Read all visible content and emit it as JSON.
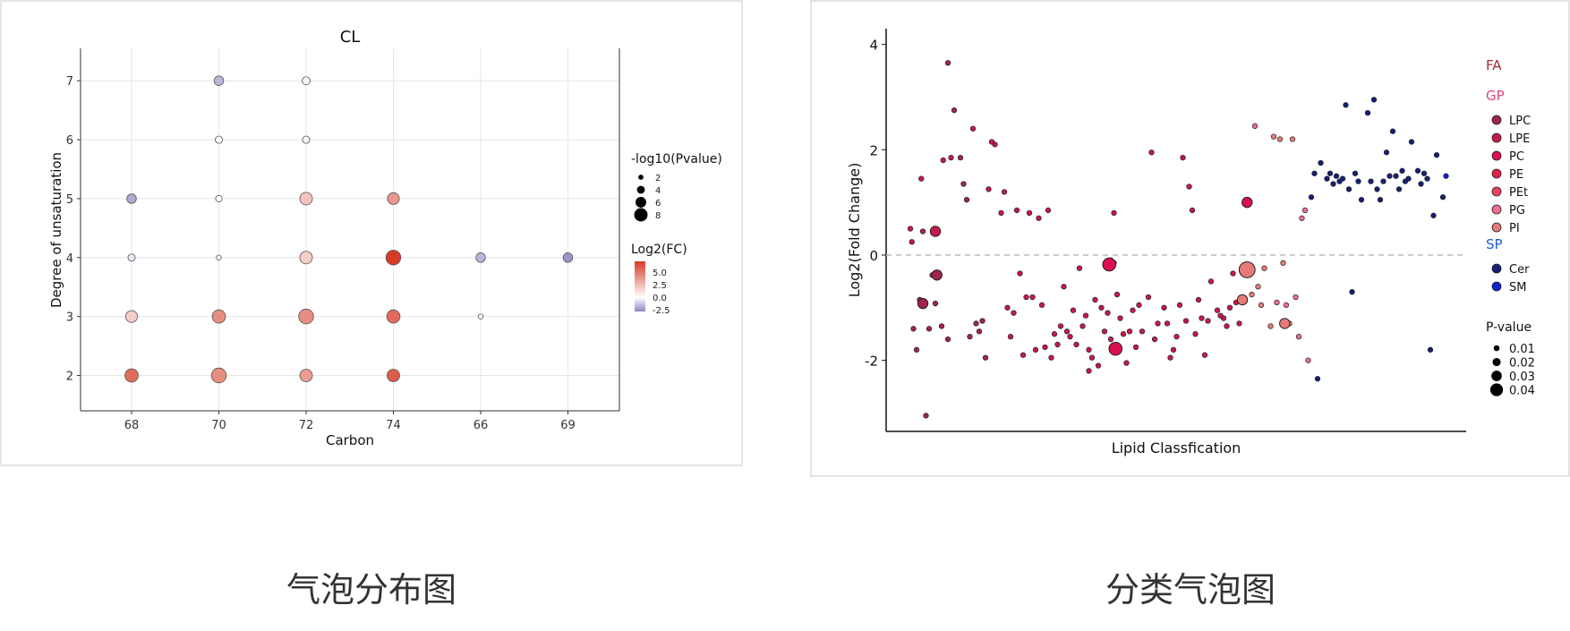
{
  "captions": {
    "left": "气泡分布图",
    "right": "分类气泡图"
  },
  "chart_data": [
    {
      "type": "scatter",
      "title": "CL",
      "xlabel": "Carbon",
      "ylabel": "Degree of unsaturation",
      "categories": [
        "68",
        "70",
        "72",
        "74",
        "66",
        "69"
      ],
      "yticks": [
        2,
        3,
        4,
        5,
        6,
        7
      ],
      "ylim": [
        1.4,
        7.55
      ],
      "grid": true,
      "points": [
        {
          "x": "70",
          "y": 7,
          "fc": -1.5,
          "p": 4.5
        },
        {
          "x": "72",
          "y": 7,
          "fc": 0.3,
          "p": 3.5
        },
        {
          "x": "70",
          "y": 6,
          "fc": 0.0,
          "p": 3.0
        },
        {
          "x": "72",
          "y": 6,
          "fc": 0.2,
          "p": 3.0
        },
        {
          "x": "68",
          "y": 5,
          "fc": -1.8,
          "p": 4.5
        },
        {
          "x": "70",
          "y": 5,
          "fc": 0.0,
          "p": 2.5
        },
        {
          "x": "72",
          "y": 5,
          "fc": 1.8,
          "p": 6.5
        },
        {
          "x": "74",
          "y": 5,
          "fc": 3.2,
          "p": 6.0
        },
        {
          "x": "68",
          "y": 4,
          "fc": -0.5,
          "p": 3.0
        },
        {
          "x": "70",
          "y": 4,
          "fc": 0.0,
          "p": 1.5
        },
        {
          "x": "72",
          "y": 4,
          "fc": 1.5,
          "p": 6.5
        },
        {
          "x": "74",
          "y": 4,
          "fc": 6.0,
          "p": 8.0
        },
        {
          "x": "66",
          "y": 4,
          "fc": -1.5,
          "p": 4.5
        },
        {
          "x": "69",
          "y": 4,
          "fc": -2.2,
          "p": 4.5
        },
        {
          "x": "68",
          "y": 3,
          "fc": 1.5,
          "p": 6.0
        },
        {
          "x": "70",
          "y": 3,
          "fc": 3.5,
          "p": 7.0
        },
        {
          "x": "72",
          "y": 3,
          "fc": 3.5,
          "p": 8.0
        },
        {
          "x": "74",
          "y": 3,
          "fc": 4.5,
          "p": 7.0
        },
        {
          "x": "66",
          "y": 3,
          "fc": 0.0,
          "p": 1.5
        },
        {
          "x": "68",
          "y": 2,
          "fc": 4.5,
          "p": 7.0
        },
        {
          "x": "70",
          "y": 2,
          "fc": 3.5,
          "p": 8.0
        },
        {
          "x": "72",
          "y": 2,
          "fc": 3.0,
          "p": 6.5
        },
        {
          "x": "74",
          "y": 2,
          "fc": 5.0,
          "p": 6.5
        }
      ],
      "legend_size": {
        "title": "-log10(Pvalue)",
        "values": [
          2,
          4,
          6,
          8
        ],
        "labels": [
          "2",
          "4",
          "6",
          "8"
        ]
      },
      "legend_color": {
        "title": "Log2(FC)",
        "ticks": [
          "5.0",
          "2.5",
          "0.0",
          "-2.5"
        ],
        "low": "#8e86c2",
        "mid": "#ffffff",
        "high": "#d73b27"
      },
      "legend_placement": "right"
    },
    {
      "type": "scatter",
      "xlabel": "Lipid Classfication",
      "ylabel": "Log2(Fold Change)",
      "yticks": [
        "4",
        "2",
        "0",
        "-2"
      ],
      "ylim": [
        -3.35,
        4.3
      ],
      "reference_line_y": 0,
      "legend": {
        "groups": [
          {
            "name": "FA",
            "color": "#a52a2a",
            "items": []
          },
          {
            "name": "GP",
            "color": "#e0457b",
            "items": [
              {
                "name": "LPC",
                "color": "#a3234f"
              },
              {
                "name": "LPE",
                "color": "#c8184a"
              },
              {
                "name": "PC",
                "color": "#dc0f50"
              },
              {
                "name": "PE",
                "color": "#e61e4c"
              },
              {
                "name": "PEt",
                "color": "#ef3f63"
              },
              {
                "name": "PG",
                "color": "#ee6d90"
              },
              {
                "name": "PI",
                "color": "#e57a78"
              }
            ]
          },
          {
            "name": "SP",
            "color": "#1e5ad1",
            "items": [
              {
                "name": "Cer",
                "color": "#141f78"
              },
              {
                "name": "SM",
                "color": "#1020d0"
              }
            ]
          }
        ],
        "size": {
          "title": "P-value",
          "labels": [
            "0.01",
            "0.02",
            "0.03",
            "0.04"
          ],
          "values": [
            0.01,
            0.02,
            0.03,
            0.04
          ]
        }
      },
      "series": [
        {
          "name": "LPC",
          "color": "#a3234f",
          "points": [
            [
              0.6,
              0.45
            ],
            [
              0.9,
              -0.38
            ],
            [
              1.0,
              -0.92
            ],
            [
              1.4,
              3.65
            ],
            [
              1.6,
              2.75
            ],
            [
              1.8,
              1.85
            ],
            [
              1.9,
              1.35
            ],
            [
              2.0,
              1.05
            ],
            [
              2.1,
              -1.55
            ],
            [
              2.3,
              -1.3
            ],
            [
              2.4,
              -1.45
            ],
            [
              2.6,
              -1.95
            ],
            [
              0.5,
              -0.85
            ],
            [
              0.3,
              -1.4
            ],
            [
              0.8,
              -1.4
            ],
            [
              1.2,
              -1.35
            ],
            [
              1.4,
              -1.6
            ],
            [
              2.5,
              -1.25
            ],
            [
              0.4,
              -1.8
            ],
            [
              0.7,
              -3.05
            ]
          ]
        },
        {
          "name": "LPE",
          "color": "#c8184a",
          "points": [
            [
              0.2,
              0.5
            ],
            [
              0.25,
              0.25
            ],
            [
              0.55,
              1.45
            ],
            [
              0.65,
              -0.95
            ],
            [
              1.25,
              1.8
            ],
            [
              1.5,
              1.85
            ],
            [
              2.2,
              2.4
            ],
            [
              2.7,
              1.25
            ],
            [
              2.9,
              2.1
            ],
            [
              3.1,
              0.8
            ],
            [
              2.8,
              2.15
            ],
            [
              3.2,
              1.2
            ],
            [
              3.3,
              -1.0
            ],
            [
              3.5,
              -1.1
            ],
            [
              3.7,
              -0.35
            ],
            [
              3.9,
              -0.8
            ],
            [
              4.1,
              -0.8
            ],
            [
              4.2,
              -1.8
            ],
            [
              4.4,
              -0.95
            ],
            [
              4.6,
              0.85
            ],
            [
              4.8,
              -1.5
            ],
            [
              5.0,
              -1.35
            ],
            [
              5.2,
              -1.45
            ],
            [
              5.4,
              -1.05
            ],
            [
              5.6,
              -0.25
            ],
            [
              5.8,
              -1.15
            ],
            [
              6.0,
              -1.95
            ],
            [
              6.1,
              -0.85
            ],
            [
              6.3,
              -1.0
            ],
            [
              6.5,
              -1.1
            ],
            [
              6.6,
              -1.6
            ],
            [
              6.8,
              -0.75
            ],
            [
              7.0,
              -1.5
            ],
            [
              7.2,
              -1.45
            ],
            [
              7.4,
              -1.75
            ],
            [
              7.5,
              -0.95
            ],
            [
              7.8,
              -0.8
            ],
            [
              7.9,
              1.95
            ],
            [
              8.1,
              -1.3
            ],
            [
              8.3,
              -1.0
            ],
            [
              8.4,
              -1.3
            ],
            [
              8.6,
              -1.8
            ],
            [
              8.8,
              -0.95
            ],
            [
              9.0,
              -1.25
            ],
            [
              9.1,
              1.3
            ],
            [
              9.2,
              0.85
            ],
            [
              9.3,
              -1.5
            ],
            [
              9.5,
              -1.2
            ],
            [
              9.7,
              -1.25
            ],
            [
              9.8,
              -0.5
            ],
            [
              10.0,
              -1.05
            ],
            [
              10.2,
              -1.2
            ],
            [
              10.4,
              -1.0
            ],
            [
              10.5,
              -0.35
            ],
            [
              10.7,
              -1.3
            ],
            [
              3.6,
              0.85
            ],
            [
              4.0,
              0.8
            ],
            [
              4.3,
              0.7
            ],
            [
              5.1,
              -0.6
            ],
            [
              5.3,
              -1.55
            ],
            [
              5.5,
              -1.7
            ],
            [
              5.9,
              -1.8
            ],
            [
              6.4,
              -1.45
            ],
            [
              6.9,
              -1.2
            ],
            [
              7.1,
              -2.05
            ],
            [
              7.6,
              -1.45
            ],
            [
              8.0,
              -1.6
            ],
            [
              8.5,
              -1.95
            ],
            [
              8.9,
              1.85
            ],
            [
              9.4,
              -0.85
            ],
            [
              9.6,
              -1.9
            ],
            [
              4.5,
              -1.75
            ],
            [
              5.7,
              -1.35
            ],
            [
              6.7,
              0.8
            ],
            [
              4.9,
              -1.7
            ],
            [
              6.2,
              -2.1
            ],
            [
              8.7,
              -1.55
            ],
            [
              10.1,
              -1.15
            ],
            [
              10.3,
              -1.35
            ],
            [
              10.6,
              -0.9
            ],
            [
              3.4,
              -1.55
            ],
            [
              3.8,
              -1.9
            ],
            [
              4.7,
              -1.95
            ],
            [
              5.9,
              -2.2
            ],
            [
              7.3,
              -1.05
            ]
          ]
        },
        {
          "name": "PC",
          "color": "#dc0f50",
          "points": [
            [
              6.5,
              -0.2
            ],
            [
              6.6,
              -0.1
            ],
            [
              6.7,
              -0.15
            ],
            [
              6.8,
              -1.75
            ],
            [
              10.9,
              -0.3
            ],
            [
              11.0,
              1.0
            ]
          ]
        },
        {
          "name": "PI",
          "color": "#e57a78",
          "points": [
            [
              11.1,
              -0.75
            ],
            [
              11.3,
              -0.6
            ],
            [
              11.4,
              -0.95
            ],
            [
              11.5,
              -0.25
            ],
            [
              11.7,
              -1.35
            ],
            [
              11.8,
              2.25
            ],
            [
              12.0,
              2.2
            ],
            [
              12.1,
              -0.15
            ],
            [
              12.3,
              -1.3
            ],
            [
              12.4,
              2.2
            ]
          ]
        },
        {
          "name": "PG",
          "color": "#ee6d90",
          "points": [
            [
              11.2,
              2.45
            ],
            [
              11.9,
              -0.9
            ],
            [
              12.2,
              -0.95
            ],
            [
              12.5,
              -0.8
            ],
            [
              12.6,
              -1.55
            ],
            [
              12.7,
              0.7
            ],
            [
              12.8,
              0.85
            ],
            [
              12.9,
              -2.0
            ]
          ]
        },
        {
          "name": "Cer",
          "color": "#141f78",
          "points": [
            [
              13.0,
              1.1
            ],
            [
              13.1,
              1.55
            ],
            [
              13.3,
              1.75
            ],
            [
              13.5,
              1.45
            ],
            [
              13.6,
              1.55
            ],
            [
              13.7,
              1.35
            ],
            [
              13.9,
              1.4
            ],
            [
              14.0,
              1.45
            ],
            [
              14.1,
              2.85
            ],
            [
              14.2,
              1.25
            ],
            [
              14.4,
              1.55
            ],
            [
              14.5,
              1.4
            ],
            [
              14.6,
              1.05
            ],
            [
              14.8,
              2.7
            ],
            [
              14.9,
              1.4
            ],
            [
              15.0,
              2.95
            ],
            [
              15.1,
              1.25
            ],
            [
              15.3,
              1.4
            ],
            [
              15.4,
              1.95
            ],
            [
              15.5,
              1.5
            ],
            [
              15.6,
              2.35
            ],
            [
              15.8,
              1.25
            ],
            [
              15.9,
              1.6
            ],
            [
              16.0,
              1.4
            ],
            [
              16.2,
              2.15
            ],
            [
              16.4,
              1.6
            ],
            [
              16.5,
              1.35
            ],
            [
              16.6,
              1.55
            ],
            [
              16.8,
              -1.8
            ],
            [
              16.9,
              0.75
            ],
            [
              17.0,
              1.9
            ],
            [
              17.2,
              1.1
            ],
            [
              13.2,
              -2.35
            ],
            [
              14.3,
              -0.7
            ],
            [
              13.8,
              1.5
            ],
            [
              15.2,
              1.05
            ],
            [
              15.7,
              1.5
            ],
            [
              16.1,
              1.45
            ],
            [
              16.7,
              1.45
            ]
          ]
        },
        {
          "name": "SM",
          "color": "#1020d0",
          "points": [
            [
              17.3,
              1.5
            ]
          ]
        }
      ],
      "big_points": [
        {
          "x": 6.55,
          "y": -0.18,
          "color": "#dc0f50",
          "p": 0.03
        },
        {
          "x": 6.75,
          "y": -1.78,
          "color": "#dc0f50",
          "p": 0.03
        },
        {
          "x": 10.95,
          "y": -0.28,
          "color": "#e57a78",
          "p": 0.04
        },
        {
          "x": 0.6,
          "y": -0.92,
          "color": "#a3234f",
          "p": 0.02
        },
        {
          "x": 1.0,
          "y": 0.45,
          "color": "#c8184a",
          "p": 0.02
        },
        {
          "x": 1.05,
          "y": -0.38,
          "color": "#a3234f",
          "p": 0.02
        },
        {
          "x": 10.95,
          "y": 1.0,
          "color": "#dc0f50",
          "p": 0.02
        },
        {
          "x": 12.15,
          "y": -1.3,
          "color": "#e57a78",
          "p": 0.02
        },
        {
          "x": 10.8,
          "y": -0.85,
          "color": "#e57a78",
          "p": 0.02
        }
      ],
      "xlim": [
        0,
        17.8
      ]
    }
  ]
}
